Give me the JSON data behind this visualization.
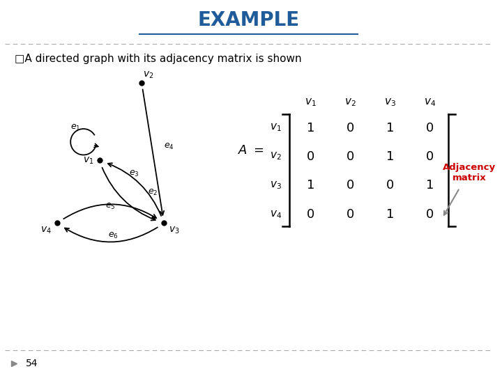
{
  "title": "EXAMPLE",
  "title_color": "#1F5C99",
  "subtitle": "□A directed graph with its adjacency matrix is shown",
  "bg_color": "#ffffff",
  "page_number": "54",
  "matrix": [
    [
      1,
      0,
      1,
      0
    ],
    [
      0,
      0,
      1,
      0
    ],
    [
      1,
      0,
      0,
      1
    ],
    [
      0,
      0,
      1,
      0
    ]
  ],
  "row_labels": [
    "v_1",
    "v_2",
    "v_3",
    "v_4"
  ],
  "col_labels": [
    "v_1",
    "v_2",
    "v_3",
    "v_4"
  ],
  "annotation_text": "Adjacency\nmatrix",
  "annotation_color": "#CC0000"
}
